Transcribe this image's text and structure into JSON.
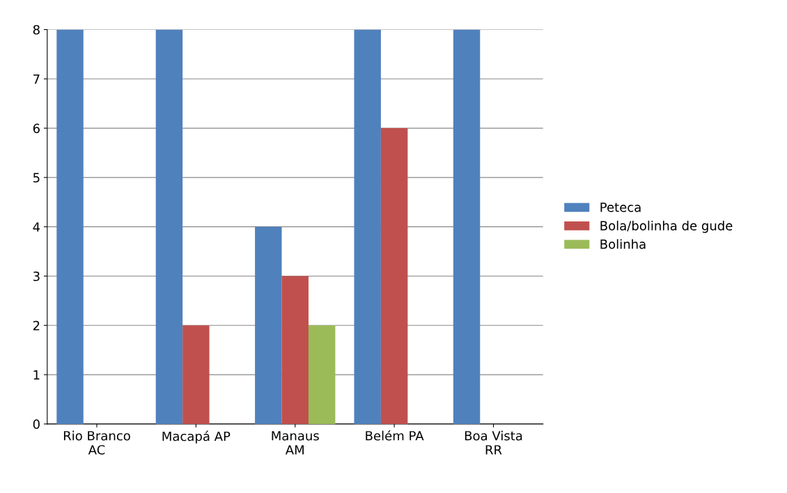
{
  "chart_data": {
    "type": "bar",
    "categories": [
      "Rio Branco\nAC",
      "Macapá AP",
      "Manaus\nAM",
      "Belém PA",
      "Boa Vista\nRR"
    ],
    "series": [
      {
        "name": "Peteca",
        "color": "#4f81bd",
        "values": [
          8,
          8,
          4,
          8,
          8
        ]
      },
      {
        "name": "Bola/bolinha de gude",
        "color": "#c0504d",
        "values": [
          null,
          2,
          3,
          6,
          null
        ]
      },
      {
        "name": "Bolinha",
        "color": "#9bbb59",
        "values": [
          null,
          null,
          2,
          null,
          null
        ]
      }
    ],
    "ylim": [
      0,
      8
    ],
    "yticks": [
      0,
      1,
      2,
      3,
      4,
      5,
      6,
      7,
      8
    ],
    "grid": "y",
    "legend": "right"
  }
}
